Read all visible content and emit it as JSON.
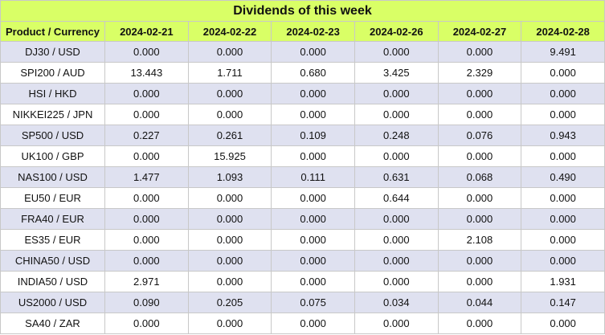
{
  "title": "Dividends of this week",
  "table": {
    "header": [
      "Product / Currency",
      "2024-02-21",
      "2024-02-22",
      "2024-02-23",
      "2024-02-26",
      "2024-02-27",
      "2024-02-28"
    ],
    "rows": [
      [
        "DJ30 / USD",
        "0.000",
        "0.000",
        "0.000",
        "0.000",
        "0.000",
        "9.491"
      ],
      [
        "SPI200 / AUD",
        "13.443",
        "1.711",
        "0.680",
        "3.425",
        "2.329",
        "0.000"
      ],
      [
        "HSI / HKD",
        "0.000",
        "0.000",
        "0.000",
        "0.000",
        "0.000",
        "0.000"
      ],
      [
        "NIKKEI225 / JPN",
        "0.000",
        "0.000",
        "0.000",
        "0.000",
        "0.000",
        "0.000"
      ],
      [
        "SP500 / USD",
        "0.227",
        "0.261",
        "0.109",
        "0.248",
        "0.076",
        "0.943"
      ],
      [
        "UK100 / GBP",
        "0.000",
        "15.925",
        "0.000",
        "0.000",
        "0.000",
        "0.000"
      ],
      [
        "NAS100 / USD",
        "1.477",
        "1.093",
        "0.111",
        "0.631",
        "0.068",
        "0.490"
      ],
      [
        "EU50 / EUR",
        "0.000",
        "0.000",
        "0.000",
        "0.644",
        "0.000",
        "0.000"
      ],
      [
        "FRA40 / EUR",
        "0.000",
        "0.000",
        "0.000",
        "0.000",
        "0.000",
        "0.000"
      ],
      [
        "ES35 / EUR",
        "0.000",
        "0.000",
        "0.000",
        "0.000",
        "2.108",
        "0.000"
      ],
      [
        "CHINA50 / USD",
        "0.000",
        "0.000",
        "0.000",
        "0.000",
        "0.000",
        "0.000"
      ],
      [
        "INDIA50 / USD",
        "2.971",
        "0.000",
        "0.000",
        "0.000",
        "0.000",
        "1.931"
      ],
      [
        "US2000 / USD",
        "0.090",
        "0.205",
        "0.075",
        "0.034",
        "0.044",
        "0.147"
      ],
      [
        "SA40 / ZAR",
        "0.000",
        "0.000",
        "0.000",
        "0.000",
        "0.000",
        "0.000"
      ]
    ]
  }
}
